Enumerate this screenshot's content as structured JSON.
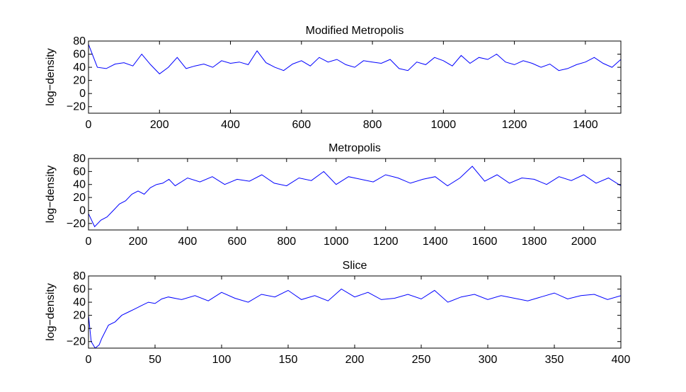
{
  "figure": {
    "line_color": "#0000ff",
    "background": "#ffffff"
  },
  "chart_data": [
    {
      "type": "line",
      "title": "Modified Metropolis",
      "xlabel": "",
      "ylabel": "log−density",
      "xlim": [
        0,
        1500
      ],
      "ylim": [
        -30,
        80
      ],
      "xticks": [
        0,
        200,
        400,
        600,
        800,
        1000,
        1200,
        1400
      ],
      "yticks": [
        -20,
        0,
        20,
        40,
        60,
        80
      ],
      "xticklabels": [
        "0",
        "200",
        "400",
        "600",
        "800",
        "1000",
        "1200",
        "1400"
      ],
      "yticklabels": [
        "−20",
        "0",
        "20",
        "40",
        "60",
        "80"
      ],
      "grid": false,
      "series": [
        {
          "x": [
            0,
            25,
            50,
            75,
            100,
            125,
            150,
            175,
            200,
            225,
            250,
            275,
            300,
            325,
            350,
            375,
            400,
            425,
            450,
            475,
            500,
            525,
            550,
            575,
            600,
            625,
            650,
            675,
            700,
            725,
            750,
            775,
            800,
            825,
            850,
            875,
            900,
            925,
            950,
            975,
            1000,
            1025,
            1050,
            1075,
            1100,
            1125,
            1150,
            1175,
            1200,
            1225,
            1250,
            1275,
            1300,
            1325,
            1350,
            1375,
            1400,
            1425,
            1450,
            1475,
            1500
          ],
          "values": [
            75,
            40,
            38,
            45,
            47,
            42,
            60,
            44,
            30,
            40,
            55,
            38,
            42,
            45,
            40,
            50,
            46,
            48,
            44,
            65,
            47,
            40,
            35,
            45,
            50,
            42,
            55,
            48,
            52,
            44,
            40,
            50,
            48,
            46,
            52,
            38,
            35,
            48,
            44,
            55,
            50,
            42,
            58,
            46,
            55,
            52,
            60,
            48,
            44,
            50,
            46,
            40,
            45,
            35,
            38,
            44,
            48,
            55,
            46,
            40,
            52
          ]
        }
      ]
    },
    {
      "type": "line",
      "title": "Metropolis",
      "xlabel": "",
      "ylabel": "log−density",
      "xlim": [
        0,
        2150
      ],
      "ylim": [
        -30,
        80
      ],
      "xticks": [
        0,
        200,
        400,
        600,
        800,
        1000,
        1200,
        1400,
        1600,
        1800,
        2000
      ],
      "yticks": [
        -20,
        0,
        20,
        40,
        60,
        80
      ],
      "xticklabels": [
        "0",
        "200",
        "400",
        "600",
        "800",
        "1000",
        "1200",
        "1400",
        "1600",
        "1800",
        "2000"
      ],
      "yticklabels": [
        "−20",
        "0",
        "20",
        "40",
        "60",
        "80"
      ],
      "grid": false,
      "series": [
        {
          "x": [
            0,
            25,
            50,
            75,
            100,
            125,
            150,
            175,
            200,
            225,
            250,
            275,
            300,
            325,
            350,
            400,
            450,
            500,
            550,
            600,
            650,
            700,
            750,
            800,
            850,
            900,
            950,
            1000,
            1050,
            1100,
            1150,
            1200,
            1250,
            1300,
            1350,
            1400,
            1450,
            1500,
            1550,
            1600,
            1650,
            1700,
            1750,
            1800,
            1850,
            1900,
            1950,
            2000,
            2050,
            2100,
            2150
          ],
          "values": [
            -5,
            -25,
            -15,
            -10,
            0,
            10,
            15,
            25,
            30,
            25,
            35,
            40,
            42,
            48,
            38,
            50,
            44,
            52,
            40,
            48,
            45,
            55,
            42,
            38,
            50,
            46,
            60,
            40,
            52,
            48,
            44,
            55,
            50,
            42,
            48,
            52,
            38,
            50,
            68,
            45,
            55,
            42,
            50,
            48,
            40,
            52,
            46,
            55,
            42,
            50,
            38
          ]
        }
      ]
    },
    {
      "type": "line",
      "title": "Slice",
      "xlabel": "",
      "ylabel": "log−density",
      "xlim": [
        0,
        400
      ],
      "ylim": [
        -30,
        80
      ],
      "xticks": [
        0,
        50,
        100,
        150,
        200,
        250,
        300,
        350,
        400
      ],
      "yticks": [
        -20,
        0,
        20,
        40,
        60,
        80
      ],
      "xticklabels": [
        "0",
        "50",
        "100",
        "150",
        "200",
        "250",
        "300",
        "350",
        "400"
      ],
      "yticklabels": [
        "−20",
        "0",
        "20",
        "40",
        "60",
        "80"
      ],
      "grid": false,
      "series": [
        {
          "x": [
            0,
            2,
            5,
            8,
            10,
            15,
            20,
            25,
            30,
            35,
            40,
            45,
            50,
            55,
            60,
            70,
            80,
            90,
            100,
            110,
            120,
            130,
            140,
            150,
            160,
            170,
            180,
            190,
            200,
            210,
            220,
            230,
            240,
            250,
            260,
            270,
            280,
            290,
            300,
            310,
            320,
            330,
            340,
            350,
            360,
            370,
            380,
            390,
            400
          ],
          "values": [
            20,
            -20,
            -30,
            -25,
            -15,
            5,
            10,
            20,
            25,
            30,
            35,
            40,
            38,
            45,
            48,
            44,
            50,
            42,
            55,
            46,
            40,
            52,
            48,
            58,
            44,
            50,
            42,
            60,
            48,
            55,
            44,
            46,
            52,
            45,
            58,
            40,
            48,
            52,
            44,
            50,
            46,
            42,
            48,
            54,
            45,
            50,
            52,
            44,
            50
          ]
        }
      ]
    }
  ]
}
